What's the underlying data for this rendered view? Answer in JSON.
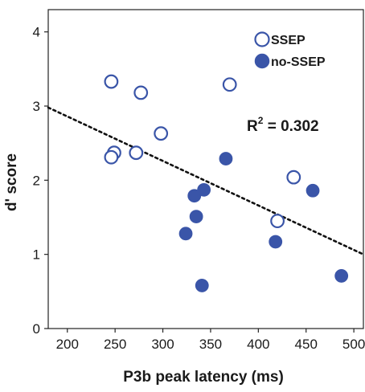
{
  "chart_data": {
    "type": "scatter",
    "xlabel": "P3b peak latency (ms)",
    "ylabel": "d' score",
    "xlim": [
      180,
      510
    ],
    "ylim": [
      0,
      4.3
    ],
    "xticks": [
      200,
      250,
      300,
      350,
      400,
      450,
      500
    ],
    "yticks": [
      0,
      1,
      2,
      3,
      4
    ],
    "grid": false,
    "legend_position": "top-right",
    "annotation": {
      "text": "R",
      "superscript": "2",
      "suffix": " = 0.302"
    },
    "accent_color": "#3a55a8",
    "series": [
      {
        "name": "SSEP",
        "marker": "open-circle",
        "points": [
          {
            "x": 246,
            "y": 3.33
          },
          {
            "x": 277,
            "y": 3.18
          },
          {
            "x": 370,
            "y": 3.29
          },
          {
            "x": 298,
            "y": 2.63
          },
          {
            "x": 249,
            "y": 2.37
          },
          {
            "x": 246,
            "y": 2.31
          },
          {
            "x": 272,
            "y": 2.37
          },
          {
            "x": 437,
            "y": 2.04
          },
          {
            "x": 420,
            "y": 1.45
          }
        ]
      },
      {
        "name": "no-SSEP",
        "marker": "filled-circle",
        "points": [
          {
            "x": 366,
            "y": 2.29
          },
          {
            "x": 343,
            "y": 1.87
          },
          {
            "x": 333,
            "y": 1.79
          },
          {
            "x": 457,
            "y": 1.86
          },
          {
            "x": 335,
            "y": 1.51
          },
          {
            "x": 324,
            "y": 1.28
          },
          {
            "x": 418,
            "y": 1.17
          },
          {
            "x": 341,
            "y": 0.58
          },
          {
            "x": 487,
            "y": 0.71
          }
        ]
      }
    ],
    "trendline": {
      "style": "dotted",
      "points": [
        {
          "x": 180,
          "y": 2.98
        },
        {
          "x": 510,
          "y": 1.0
        }
      ]
    }
  }
}
